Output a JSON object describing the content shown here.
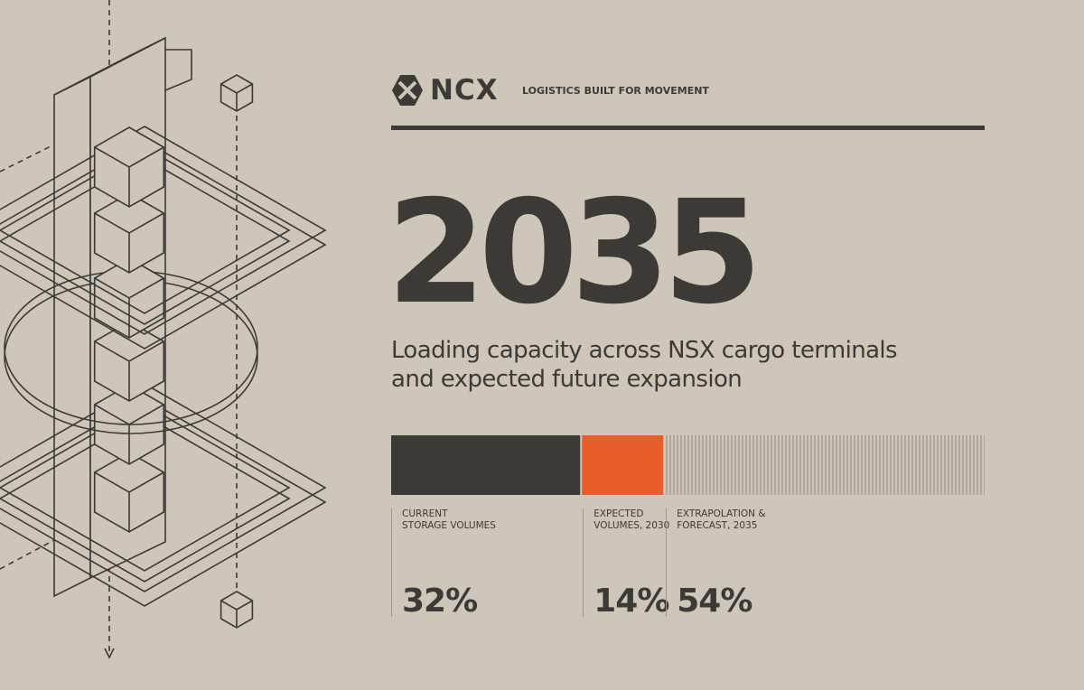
{
  "brand": "NCX",
  "tagline": "LOGISTICS BUILT FOR MOVEMENT",
  "headline": "2035",
  "description": "Loading capacity across NSX cargo terminals and expected future expansion",
  "chart_data": {
    "type": "stacked-bar",
    "xlim": [
      0,
      100
    ],
    "series": [
      {
        "name": "CURRENT\nSTORAGE VOLUMES",
        "color": "#3d3a35",
        "values": [
          32
        ],
        "value_labels": [
          "32%"
        ]
      },
      {
        "name": "EXPECTED\nVOLUMES, 2030",
        "color": "#e85d2a",
        "values": [
          14
        ],
        "value_labels": [
          "14%"
        ]
      },
      {
        "name": "EXTRAPOLATION &\nFORECAST, 2035",
        "color": "#8f897f",
        "hatch": true,
        "values": [
          54
        ],
        "value_labels": [
          "54%"
        ]
      }
    ]
  }
}
